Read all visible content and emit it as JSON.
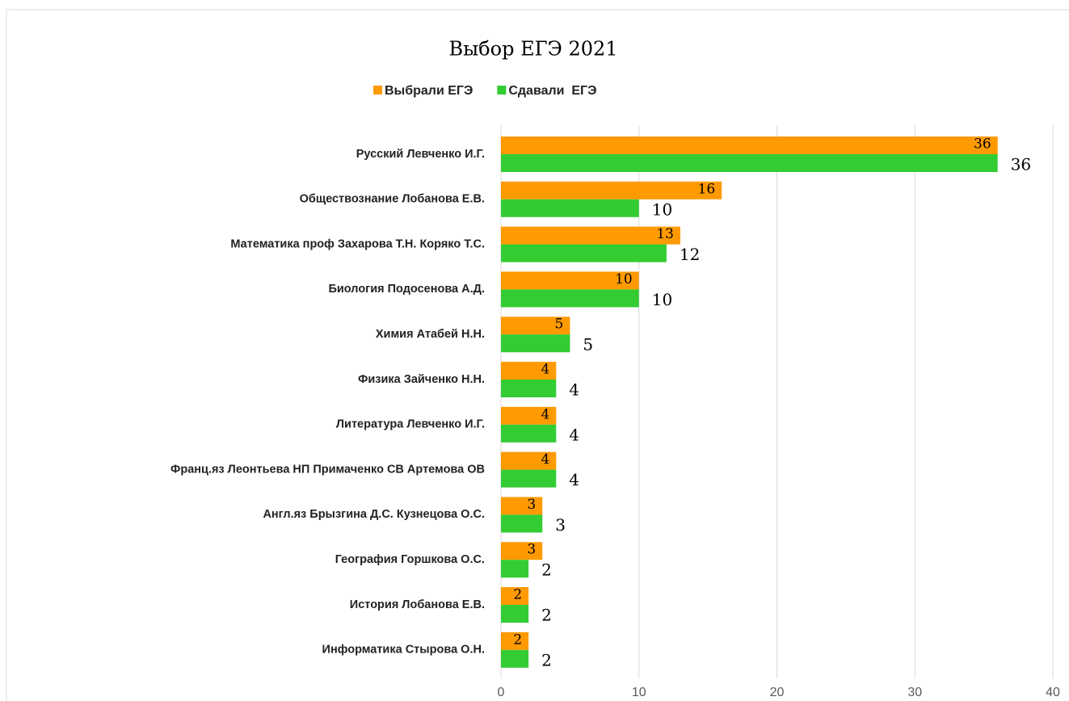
{
  "chart_data": {
    "type": "bar",
    "orientation": "horizontal",
    "title": "Выбор ЕГЭ 2021",
    "categories": [
      "Русский Левченко И.Г.",
      "Обществознание Лобанова Е.В.",
      "Математика проф Захарова Т.Н. Коряко Т.С.",
      "Биология Подосенова А.Д.",
      "Химия Атабей Н.Н.",
      "Физика Зайченко Н.Н.",
      "Литература Левченко И.Г.",
      "Франц.яз Леонтьева НП Примаченко СВ Артемова ОВ",
      "Англ.яз Брызгина Д.С. Кузнецова О.С.",
      "География Горшкова О.С.",
      "История Лобанова Е.В.",
      "Информатика Стырова О.Н."
    ],
    "series": [
      {
        "name": "Выбрали ЕГЭ",
        "color": "#ff9a00",
        "values": [
          36,
          16,
          13,
          10,
          5,
          4,
          4,
          4,
          3,
          3,
          2,
          2
        ]
      },
      {
        "name": "Сдавали  ЕГЭ",
        "color": "#33cc33",
        "values": [
          36,
          10,
          12,
          10,
          5,
          4,
          4,
          4,
          3,
          2,
          2,
          2
        ]
      }
    ],
    "xlim": [
      0,
      40
    ],
    "xticks": [
      0,
      10,
      20,
      30,
      40
    ],
    "grid": true,
    "legend": "top"
  }
}
